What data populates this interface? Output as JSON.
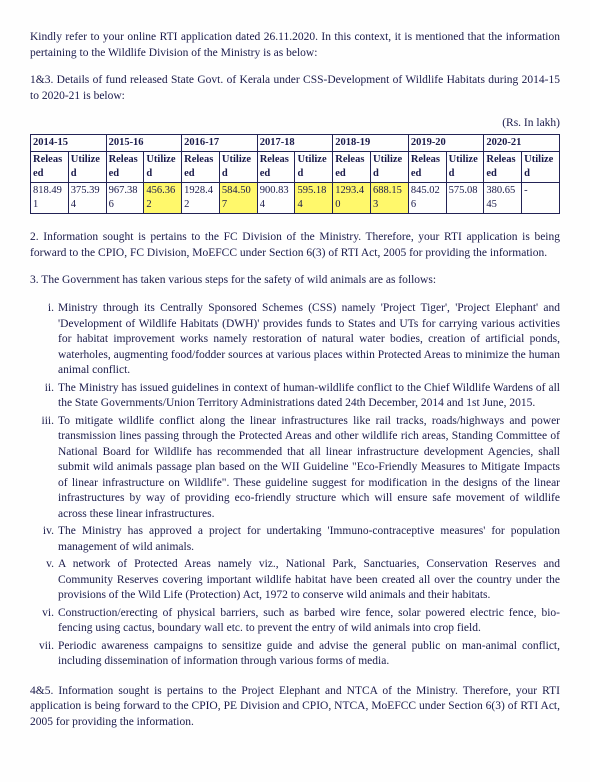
{
  "intro": "Kindly refer to your online RTI application dated 26.11.2020. In this context, it is mentioned that the information pertaining to the Wildlife Division of the Ministry is as below:",
  "q1_3": "1&3.  Details of fund released State Govt. of Kerala under CSS-Development of Wildlife Habitats during 2014-15 to 2020-21 is below:",
  "unit": "(Rs. In lakh)",
  "years": [
    "2014-15",
    "2015-16",
    "2016-17",
    "2017-18",
    "2018-19",
    "2019-20",
    "2020-21"
  ],
  "sub_r": "Released",
  "sub_u": "Utilized",
  "rows": [
    {
      "r": "818.491",
      "u": "375.394",
      "hl_r": false,
      "hl_u": false
    },
    {
      "r": "967.386",
      "u": "456.362",
      "hl_r": false,
      "hl_u": true
    },
    {
      "r": "1928.42",
      "u": "584.507",
      "hl_r": false,
      "hl_u": true
    },
    {
      "r": "900.834",
      "u": "595.184",
      "hl_r": false,
      "hl_u": true
    },
    {
      "r": "1293.40",
      "u": "688.153",
      "hl_r": true,
      "hl_u": true
    },
    {
      "r": "845.026",
      "u": "575.08",
      "hl_r": false,
      "hl_u": false
    },
    {
      "r": "380.6545",
      "u": "-",
      "hl_r": false,
      "hl_u": false
    }
  ],
  "q2": "2. Information sought is pertains to the FC Division of the Ministry. Therefore, your RTI application is being forward to the CPIO, FC Division, MoEFCC under Section 6(3) of RTI Act, 2005 for providing the information.",
  "q3_intro": "3. The Government has taken various steps for the safety of wild animals are as follows:",
  "items": [
    "Ministry through its Centrally Sponsored Schemes (CSS) namely 'Project        Tiger', 'Project Elephant' and 'Development of Wildlife Habitats (DWH)' provides funds to States and UTs for carrying various activities for habitat improvement works namely restoration of natural water bodies, creation of artificial ponds, waterholes, augmenting food/fodder sources at various places within Protected Areas to minimize the human animal conflict.",
    "The Ministry has issued guidelines in context of human-wildlife conflict to the Chief Wildlife Wardens of all the State Governments/Union Territory Administrations dated 24th December, 2014 and 1st June, 2015.",
    "To mitigate wildlife conflict along the linear infrastructures like rail tracks, roads/highways and power transmission lines passing through the Protected Areas and other wildlife rich areas, Standing Committee of National Board for Wildlife has recommended that all linear infrastructure development Agencies, shall submit wild animals passage plan based on the WII Guideline \"Eco-Friendly Measures to Mitigate Impacts of linear infrastructure on Wildlife\". These guideline suggest for modification in the designs of the linear infrastructures by way of providing eco-friendly structure which will ensure safe movement of wildlife across these linear infrastructures.",
    "The Ministry has approved a project for undertaking 'Immuno-contraceptive measures' for population management of wild animals.",
    "A network of Protected Areas namely viz., National Park, Sanctuaries, Conservation Reserves and Community Reserves covering important wildlife habitat have been created all over the country under the provisions of the Wild Life (Protection) Act, 1972 to conserve wild animals and their habitats.",
    "Construction/erecting of physical barriers, such as barbed wire fence, solar powered electric fence, bio-fencing using cactus, boundary wall etc. to prevent the entry of wild animals into crop field.",
    "Periodic awareness campaigns to sensitize guide and advise the general public on man-animal conflict, including dissemination of information through various forms of media."
  ],
  "markers": [
    "i.",
    "ii.",
    "iii.",
    "iv.",
    "v.",
    "vi.",
    "vii."
  ],
  "q4_5": "4&5. Information sought is pertains to the Project Elephant and NTCA of the Ministry. Therefore, your RTI application is being forward to the CPIO, PE Division and CPIO, NTCA, MoEFCC under Section 6(3) of RTI Act, 2005 for providing the information."
}
